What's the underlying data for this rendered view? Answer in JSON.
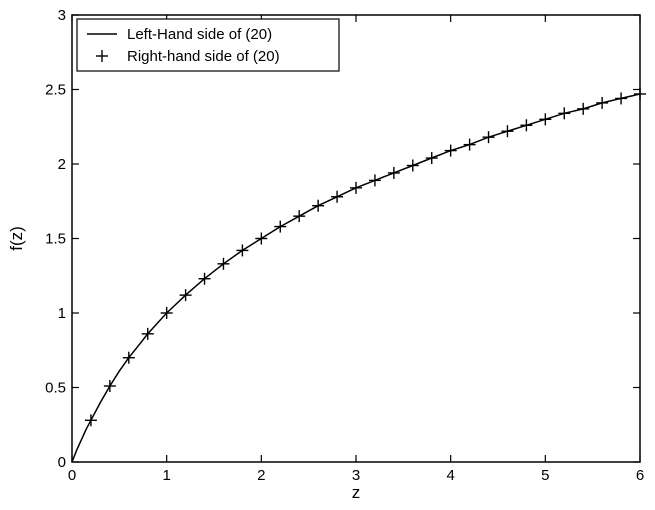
{
  "chart_data": {
    "type": "line",
    "title": "",
    "xlabel": "z",
    "ylabel": "f(z)",
    "xlim": [
      0,
      6
    ],
    "ylim": [
      0,
      3
    ],
    "xticks": [
      "0",
      "1",
      "2",
      "3",
      "4",
      "5",
      "6"
    ],
    "yticks": [
      "0",
      "0.5",
      "1",
      "1.5",
      "2",
      "2.5",
      "3"
    ],
    "grid": false,
    "legend_position": "top-left",
    "series": [
      {
        "name": "Left-Hand side of (20)",
        "style": "solid-line",
        "color": "#000000",
        "x": [
          0,
          0.05,
          0.1,
          0.15,
          0.2,
          0.3,
          0.4,
          0.5,
          0.6,
          0.7,
          0.8,
          0.9,
          1.0,
          1.2,
          1.4,
          1.6,
          1.8,
          2.0,
          2.2,
          2.4,
          2.6,
          2.8,
          3.0,
          3.2,
          3.4,
          3.6,
          3.8,
          4.0,
          4.2,
          4.4,
          4.6,
          4.8,
          5.0,
          5.2,
          5.4,
          5.6,
          5.8,
          6.0
        ],
        "y": [
          0,
          0.08,
          0.15,
          0.22,
          0.28,
          0.4,
          0.51,
          0.61,
          0.7,
          0.78,
          0.86,
          0.93,
          1.0,
          1.12,
          1.23,
          1.33,
          1.42,
          1.5,
          1.58,
          1.65,
          1.72,
          1.78,
          1.84,
          1.89,
          1.94,
          1.99,
          2.04,
          2.09,
          2.13,
          2.18,
          2.22,
          2.26,
          2.3,
          2.34,
          2.37,
          2.41,
          2.44,
          2.47
        ]
      },
      {
        "name": "Right-hand side of (20)",
        "style": "plus-marker",
        "color": "#000000",
        "x": [
          0.2,
          0.4,
          0.6,
          0.8,
          1.0,
          1.2,
          1.4,
          1.6,
          1.8,
          2.0,
          2.2,
          2.4,
          2.6,
          2.8,
          3.0,
          3.2,
          3.4,
          3.6,
          3.8,
          4.0,
          4.2,
          4.4,
          4.6,
          4.8,
          5.0,
          5.2,
          5.4,
          5.6,
          5.8,
          6.0
        ],
        "y": [
          0.28,
          0.51,
          0.7,
          0.86,
          1.0,
          1.12,
          1.23,
          1.33,
          1.42,
          1.5,
          1.58,
          1.65,
          1.72,
          1.78,
          1.84,
          1.89,
          1.94,
          1.99,
          2.04,
          2.09,
          2.13,
          2.18,
          2.22,
          2.26,
          2.3,
          2.34,
          2.37,
          2.41,
          2.44,
          2.47
        ]
      }
    ]
  }
}
